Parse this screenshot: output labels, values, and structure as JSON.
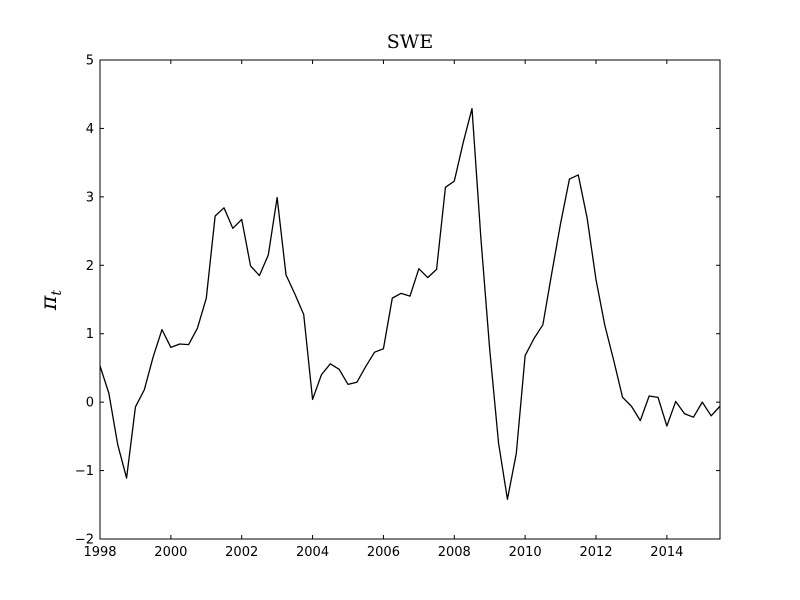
{
  "chart_data": {
    "type": "line",
    "title": "SWE",
    "xlabel": "",
    "ylabel": "π",
    "ylabel_subscript": "t",
    "xlim": [
      1998,
      2015.5
    ],
    "ylim": [
      -2,
      5
    ],
    "xticks": [
      1998,
      2000,
      2002,
      2004,
      2006,
      2008,
      2010,
      2012,
      2014
    ],
    "xtick_labels": [
      "1998",
      "2000",
      "2002",
      "2004",
      "2006",
      "2008",
      "2010",
      "2012",
      "2014"
    ],
    "yticks": [
      -2,
      -1,
      0,
      1,
      2,
      3,
      4,
      5
    ],
    "ytick_labels": [
      "−2",
      "−1",
      "0",
      "1",
      "2",
      "3",
      "4",
      "5"
    ],
    "grid": false,
    "line_color": "#000000",
    "series": [
      {
        "x": [
          1998.0,
          1998.25,
          1998.5,
          1998.75,
          1999.0,
          1999.25,
          1999.5,
          1999.75,
          2000.0,
          2000.25,
          2000.5,
          2000.75,
          2001.0,
          2001.25,
          2001.5,
          2001.75,
          2002.0,
          2002.25,
          2002.5,
          2002.75,
          2003.0,
          2003.25,
          2003.5,
          2003.75,
          2004.0,
          2004.25,
          2004.5,
          2004.75,
          2005.0,
          2005.25,
          2005.5,
          2005.75,
          2006.0,
          2006.25,
          2006.5,
          2006.75,
          2007.0,
          2007.25,
          2007.5,
          2007.75,
          2008.0,
          2008.25,
          2008.5,
          2008.75,
          2009.0,
          2009.25,
          2009.5,
          2009.75,
          2010.0,
          2010.25,
          2010.5,
          2010.75,
          2011.0,
          2011.25,
          2011.5,
          2011.75,
          2012.0,
          2012.25,
          2012.5,
          2012.75,
          2013.0,
          2013.25,
          2013.5,
          2013.75,
          2014.0,
          2014.25,
          2014.5,
          2014.75,
          2015.0,
          2015.25,
          2015.5
        ],
        "values": [
          0.53,
          0.13,
          -0.62,
          -1.11,
          -0.07,
          0.18,
          0.66,
          1.06,
          0.8,
          0.85,
          0.84,
          1.08,
          1.52,
          2.72,
          2.84,
          2.54,
          2.67,
          1.99,
          1.85,
          2.15,
          2.99,
          1.86,
          1.58,
          1.28,
          0.04,
          0.4,
          0.56,
          0.48,
          0.26,
          0.29,
          0.52,
          0.73,
          0.78,
          1.52,
          1.59,
          1.55,
          1.95,
          1.82,
          1.94,
          3.14,
          3.23,
          3.79,
          4.29,
          2.4,
          0.77,
          -0.6,
          -1.42,
          -0.75,
          0.68,
          0.93,
          1.13,
          1.88,
          2.61,
          3.26,
          3.32,
          2.69,
          1.79,
          1.12,
          0.61,
          0.07,
          -0.06,
          -0.27,
          0.09,
          0.07,
          -0.35,
          0.01,
          -0.17,
          -0.22,
          0.0,
          -0.2,
          -0.06
        ]
      }
    ]
  }
}
